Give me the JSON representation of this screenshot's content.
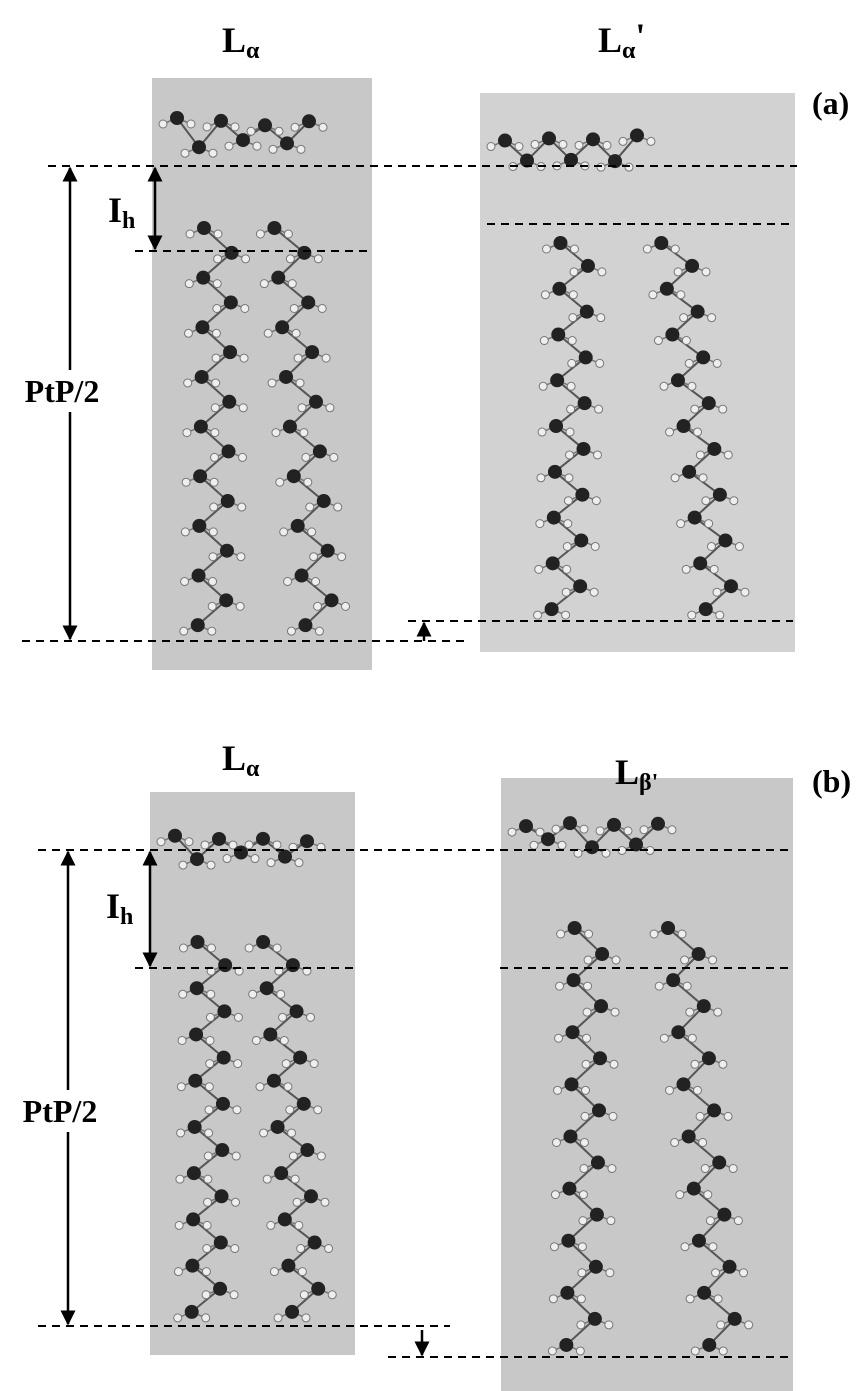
{
  "panels": [
    {
      "label": "(a)",
      "left_title": {
        "main": "L",
        "sub": "α"
      },
      "right_title": {
        "main": "L",
        "sub": "α",
        "prime": "'"
      },
      "head_label": {
        "main": "I",
        "sub": "h"
      },
      "period_label": "PtP/2"
    },
    {
      "label": "(b)",
      "left_title": {
        "main": "L",
        "sub": "α"
      },
      "right_title": {
        "main": "L",
        "sub": "β'"
      },
      "head_label": {
        "main": "I",
        "sub": "h"
      },
      "period_label": "PtP/2"
    }
  ]
}
